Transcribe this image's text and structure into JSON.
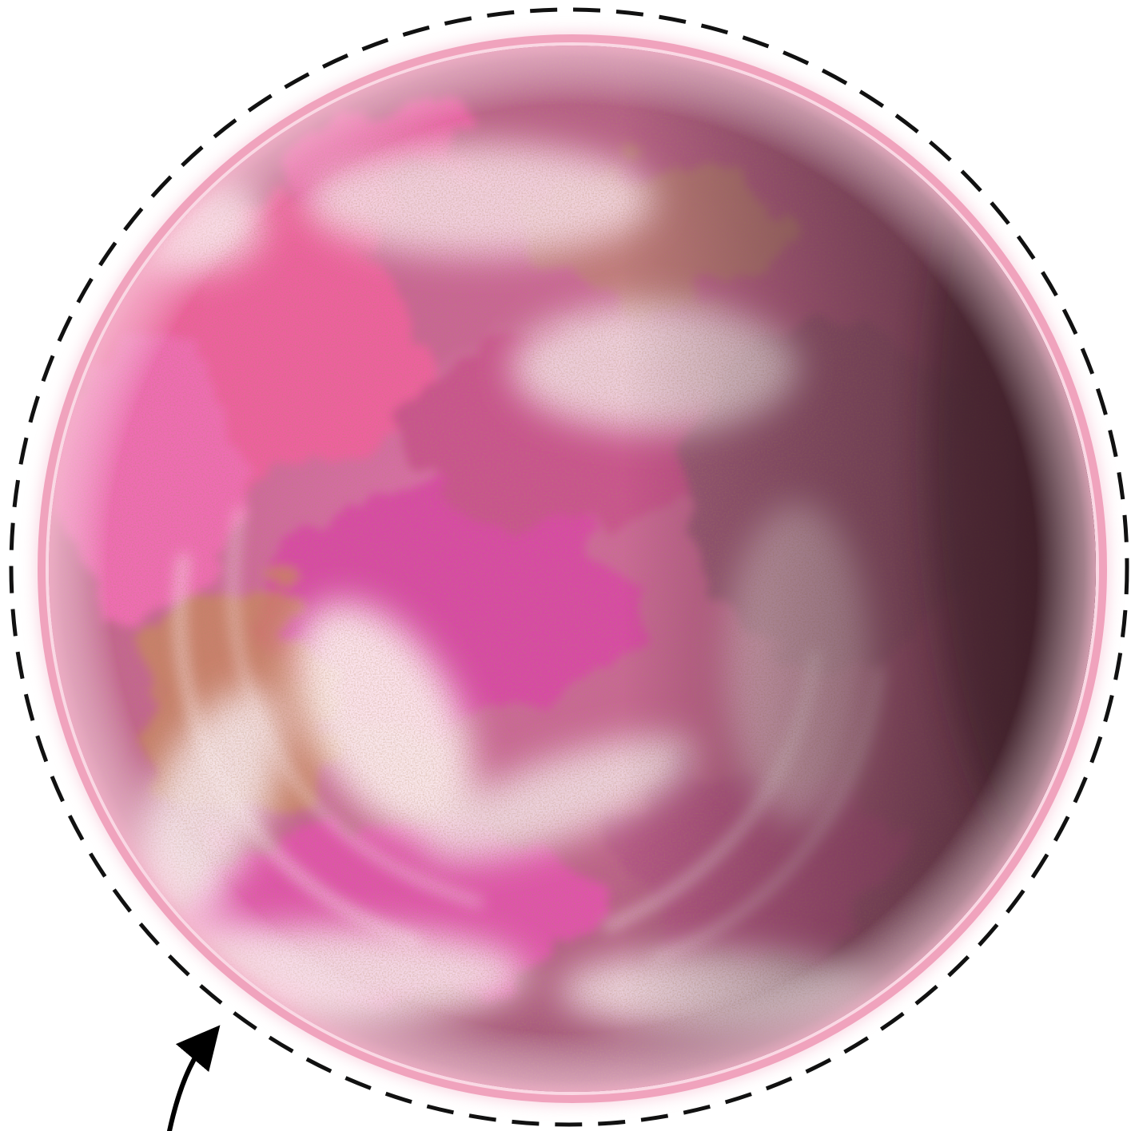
{
  "scene": {
    "subject": "planet-icon",
    "annotation": "dashed-orbit-boundary",
    "pointer": "curved-arrow-icon"
  },
  "colors": {
    "background": "#ffffff",
    "atmosphere_glow": "#f6b6cc",
    "rim": "#f0a3bd",
    "surface_magenta": "#e84fae",
    "surface_pink": "#f07ac0",
    "surface_mauve": "#9c5a7a",
    "surface_cloud": "#f7e6ec",
    "surface_ochre": "#c98a5a",
    "night_side": "#4a2a34",
    "dashed_outline": "#111111",
    "arrow": "#000000"
  }
}
